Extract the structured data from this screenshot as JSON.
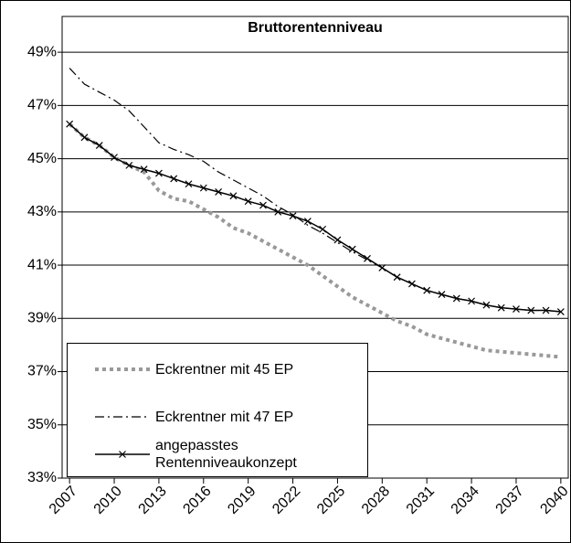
{
  "chart_data": {
    "type": "line",
    "title": "Bruttorentenniveau",
    "x": [
      2007,
      2008,
      2009,
      2010,
      2011,
      2012,
      2013,
      2014,
      2015,
      2016,
      2017,
      2018,
      2019,
      2020,
      2021,
      2022,
      2023,
      2024,
      2025,
      2026,
      2027,
      2028,
      2029,
      2030,
      2031,
      2032,
      2033,
      2034,
      2035,
      2036,
      2037,
      2038,
      2039,
      2040
    ],
    "xlim": [
      2006.5,
      2040.5
    ],
    "xticks": [
      2007,
      2010,
      2013,
      2016,
      2019,
      2022,
      2025,
      2028,
      2031,
      2034,
      2037,
      2040
    ],
    "ylim": [
      33,
      50
    ],
    "yticks": [
      {
        "value": 33,
        "label": "33%"
      },
      {
        "value": 35,
        "label": "35%"
      },
      {
        "value": 37,
        "label": "37%"
      },
      {
        "value": 39,
        "label": "39%"
      },
      {
        "value": 41,
        "label": "41%"
      },
      {
        "value": 43,
        "label": "43%"
      },
      {
        "value": 45,
        "label": "45%"
      },
      {
        "value": 47,
        "label": "47%"
      },
      {
        "value": 49,
        "label": "49%"
      }
    ],
    "grid": true,
    "legend": "lower-left",
    "series": [
      {
        "name": "Eckrentner mit 45 EP",
        "color": "#999999",
        "style": "dotted",
        "values": [
          46.3,
          45.8,
          45.5,
          45.05,
          44.75,
          44.5,
          43.8,
          43.5,
          43.4,
          43.1,
          42.8,
          42.4,
          42.2,
          41.9,
          41.6,
          41.3,
          41.0,
          40.6,
          40.2,
          39.8,
          39.5,
          39.2,
          38.9,
          38.7,
          38.4,
          38.25,
          38.1,
          37.95,
          37.8,
          37.75,
          37.7,
          37.65,
          37.6,
          37.55
        ]
      },
      {
        "name": "Eckrentner mit 47 EP",
        "color": "#000000",
        "style": "dashdot",
        "values": [
          48.4,
          47.8,
          47.5,
          47.2,
          46.8,
          46.2,
          45.6,
          45.35,
          45.15,
          44.9,
          44.5,
          44.2,
          43.9,
          43.6,
          43.2,
          42.9,
          42.5,
          42.2,
          41.85,
          41.5,
          41.2,
          40.9,
          40.55,
          40.3,
          40.05,
          39.9,
          39.75,
          39.65,
          39.5,
          39.4,
          39.35,
          39.3,
          39.3,
          39.25
        ]
      },
      {
        "name": "angepasstes Rentenniveaukonzept",
        "color": "#000000",
        "style": "solid-x",
        "values": [
          46.3,
          45.8,
          45.5,
          45.05,
          44.75,
          44.6,
          44.45,
          44.25,
          44.05,
          43.9,
          43.75,
          43.6,
          43.4,
          43.25,
          43.0,
          42.85,
          42.65,
          42.35,
          41.95,
          41.6,
          41.25,
          40.9,
          40.55,
          40.3,
          40.05,
          39.9,
          39.75,
          39.65,
          39.5,
          39.4,
          39.35,
          39.3,
          39.3,
          39.25
        ]
      }
    ]
  }
}
